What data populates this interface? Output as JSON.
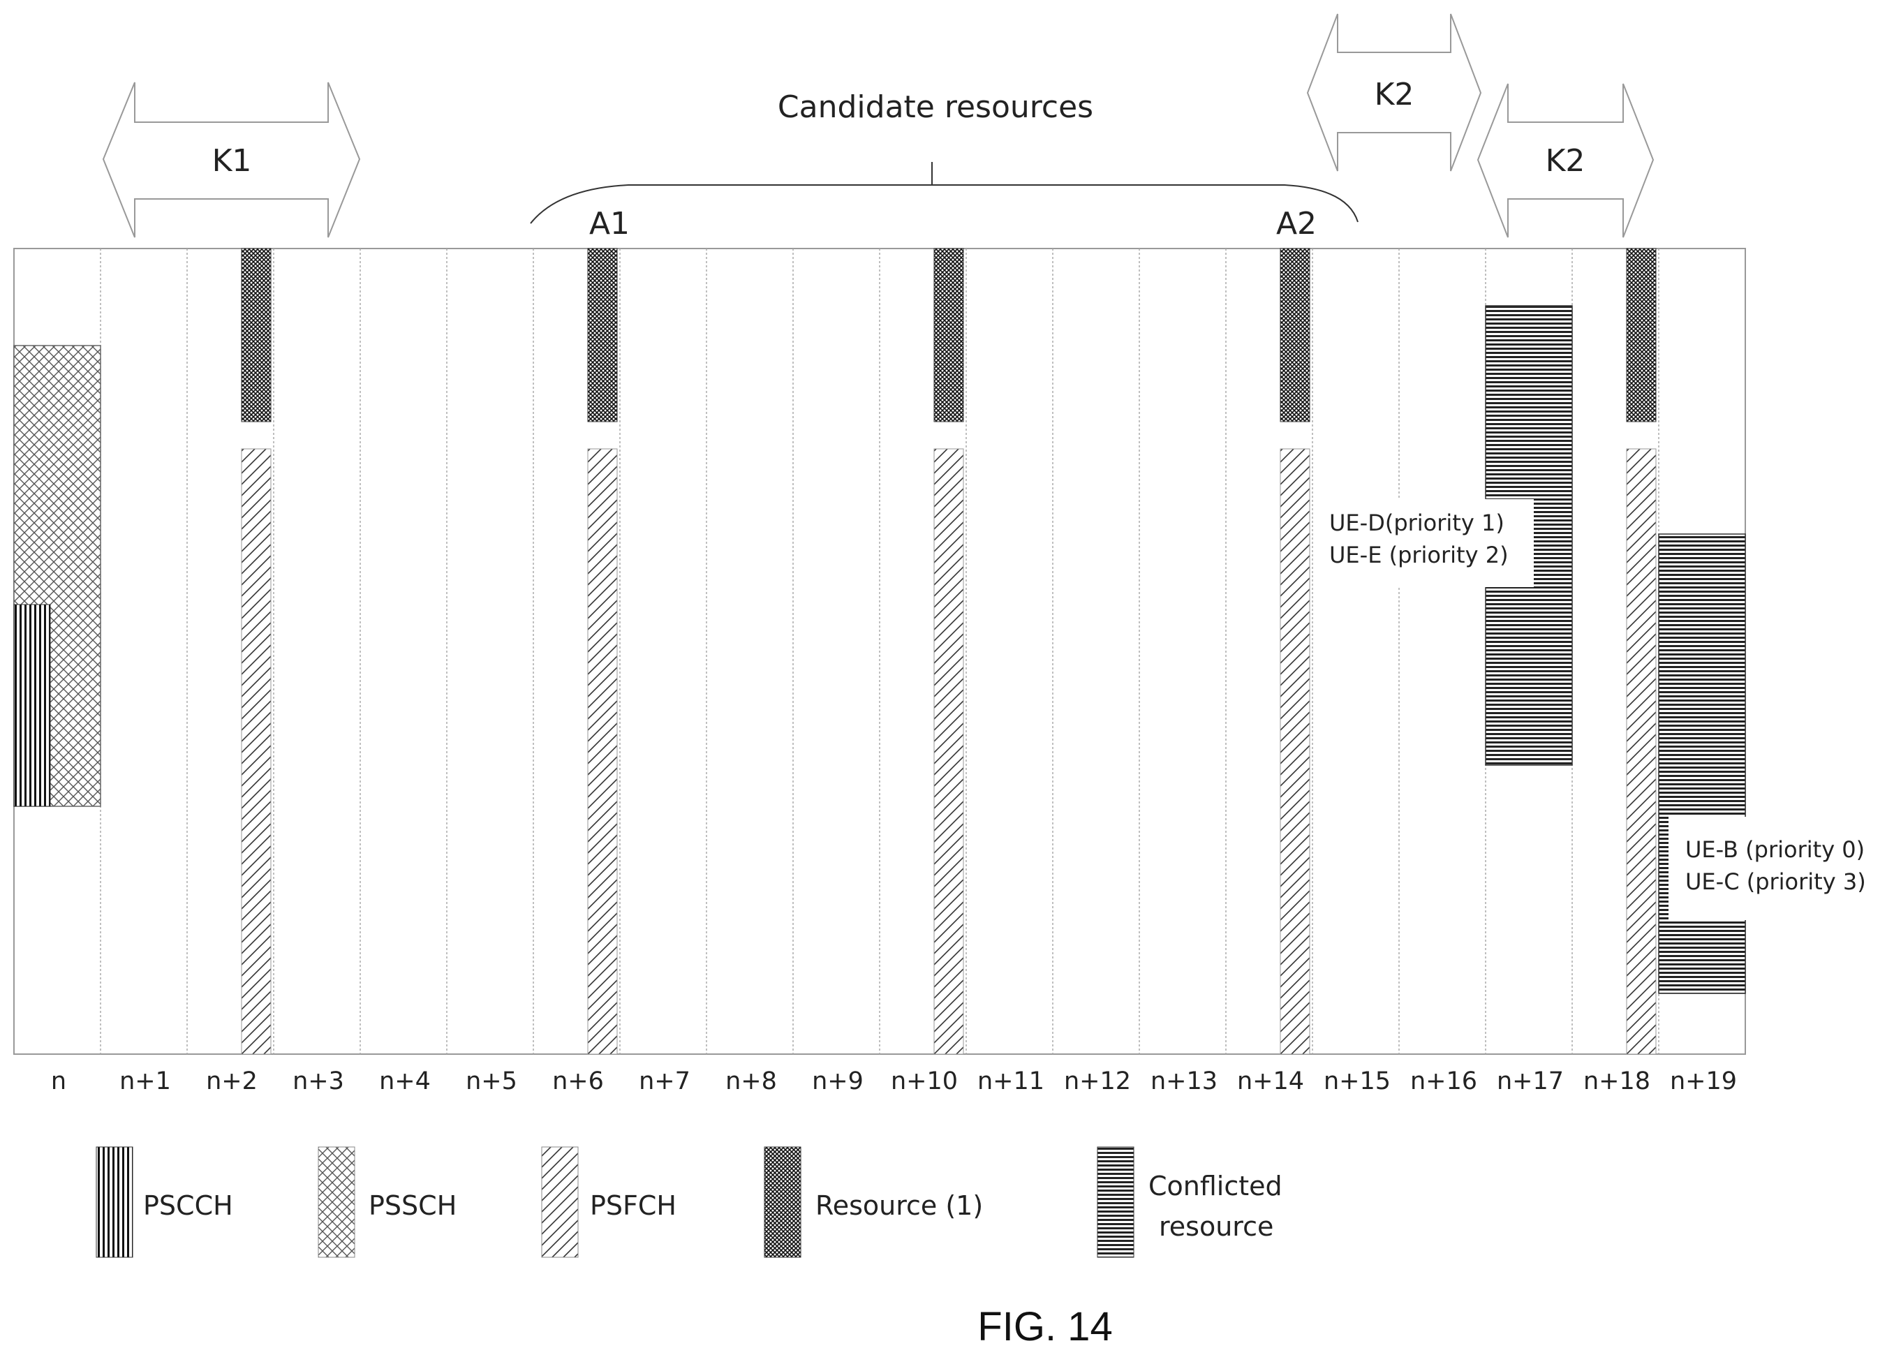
{
  "slots": [
    "n",
    "n+1",
    "n+2",
    "n+3",
    "n+4",
    "n+5",
    "n+6",
    "n+7",
    "n+8",
    "n+9",
    "n+10",
    "n+11",
    "n+12",
    "n+13",
    "n+14",
    "n+15",
    "n+16",
    "n+17",
    "n+18",
    "n+19"
  ],
  "candidate_label": "Candidate resources",
  "markers": {
    "a1": "A1",
    "a2": "A2"
  },
  "arrows": {
    "k1": "K1",
    "k2_top": "K2",
    "k2_lower": "K2"
  },
  "ue_labels": {
    "group1": [
      "UE-D(priority 1)",
      "UE-E (priority 2)"
    ],
    "group2": [
      "UE-B (priority 0)",
      "UE-C (priority 3)"
    ]
  },
  "legend": {
    "pscch": "PSCCH",
    "pssch": "PSSCH",
    "psfch": "PSFCH",
    "resource1": "Resource (1)",
    "conflicted_line1": "Conflicted",
    "conflicted_line2": "resource"
  },
  "figure_label": "FIG. 14"
}
